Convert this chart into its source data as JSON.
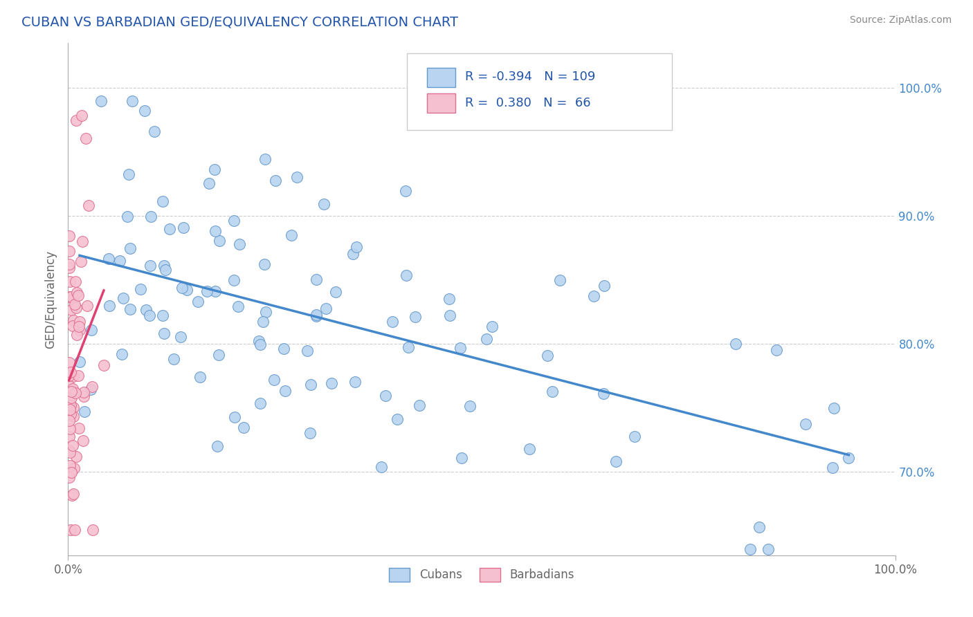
{
  "title": "CUBAN VS BARBADIAN GED/EQUIVALENCY CORRELATION CHART",
  "source": "Source: ZipAtlas.com",
  "ylabel": "GED/Equivalency",
  "ytick_labels": [
    "70.0%",
    "80.0%",
    "90.0%",
    "100.0%"
  ],
  "ytick_values": [
    0.7,
    0.8,
    0.9,
    1.0
  ],
  "xlim": [
    0.0,
    1.0
  ],
  "ylim": [
    0.635,
    1.035
  ],
  "cuban_color": "#b8d4f0",
  "cuban_edge_color": "#6699cc",
  "barbadian_color": "#f5c0d0",
  "barbadian_edge_color": "#e07090",
  "trendline_cuban": "#4488cc",
  "trendline_barbadian": "#e04070",
  "legend_R_cuban": "-0.394",
  "legend_N_cuban": "109",
  "legend_R_barbadian": "0.380",
  "legend_N_barbadian": "66",
  "legend_text_color": "#2255aa",
  "grid_color": "#cccccc",
  "background_color": "#ffffff",
  "title_color": "#2255aa",
  "axis_label_color": "#666666",
  "right_tick_color": "#4488cc",
  "bottom_label_color": "#666666"
}
